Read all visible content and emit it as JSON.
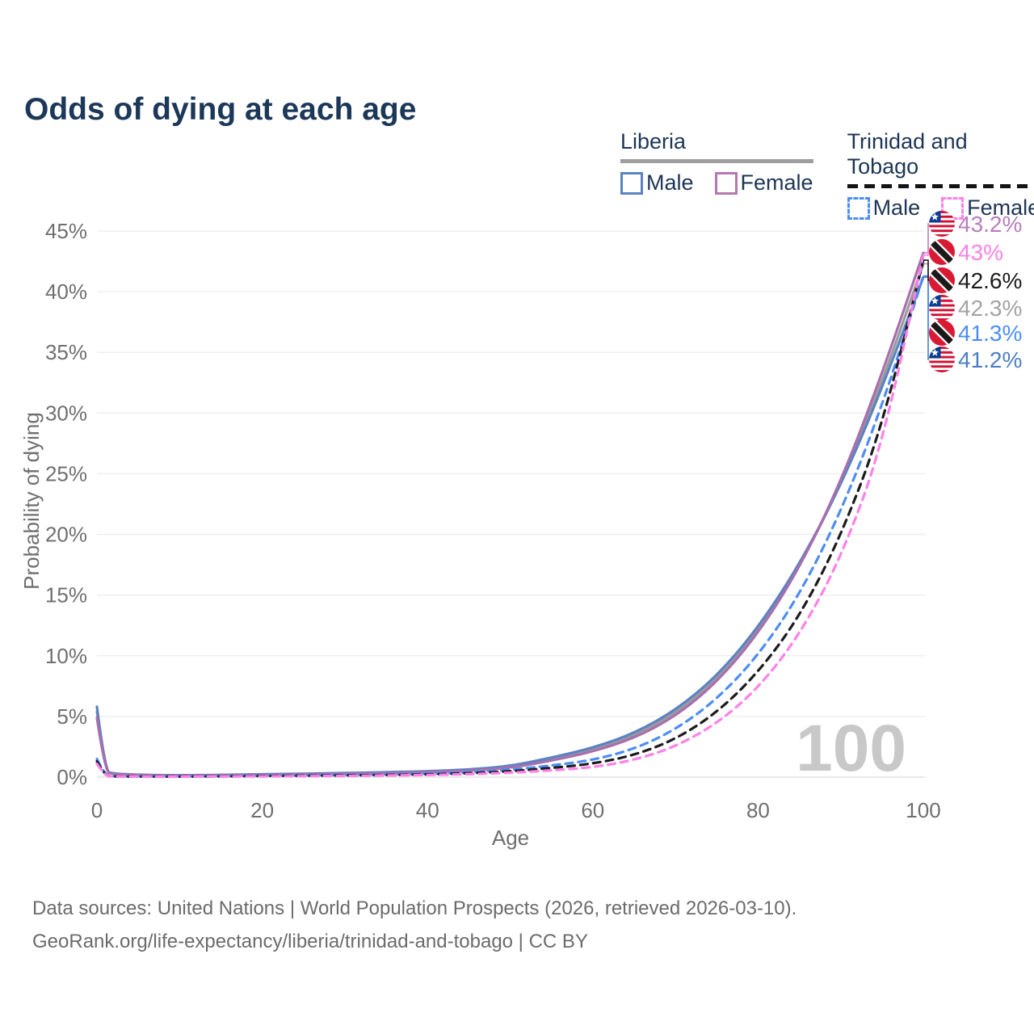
{
  "title": "Odds of dying at each age",
  "watermark_age": "100",
  "legend": {
    "groups": [
      {
        "name": "Liberia",
        "line_style": "solid",
        "underline_color": "#9e9e9e",
        "items": [
          {
            "label": "Male",
            "color": "#5b82c2"
          },
          {
            "label": "Female",
            "color": "#b279b2"
          }
        ]
      },
      {
        "name": "Trinidad and Tobago",
        "line_style": "dashed",
        "underline_color": "#141414",
        "items": [
          {
            "label": "Male",
            "color": "#4d8df5"
          },
          {
            "label": "Female",
            "color": "#ff80e8"
          }
        ]
      }
    ]
  },
  "footer": {
    "line1": "Data sources: United Nations | World Population Prospects (2026, retrieved 2026-03-10).",
    "line2": "GeoRank.org/life-expectancy/liberia/trinidad-and-tobago | CC BY"
  },
  "chart_data": {
    "type": "line",
    "title": "Odds of dying at each age",
    "xlabel": "Age",
    "ylabel": "Probability of dying",
    "xlim": [
      0,
      100
    ],
    "ylim": [
      0,
      45
    ],
    "x_ticks": [
      0,
      20,
      40,
      60,
      80,
      100
    ],
    "y_ticks": [
      0,
      5,
      10,
      15,
      20,
      25,
      30,
      35,
      40,
      45
    ],
    "y_tick_suffix": "%",
    "grid": true,
    "legend_position": "top-right",
    "x": [
      0,
      1,
      2,
      3,
      5,
      8,
      10,
      15,
      20,
      25,
      30,
      35,
      40,
      45,
      50,
      55,
      60,
      65,
      70,
      75,
      80,
      85,
      90,
      95,
      100
    ],
    "series": [
      {
        "name": "Liberia Both sexes",
        "country": "Liberia",
        "sex": "both",
        "color": "#9b9b9b",
        "dash": "solid",
        "flag": "liberia",
        "end_label": "42.3%",
        "label_color": "#a3a3a3",
        "label_slot": 141,
        "values": [
          5.4,
          0.43,
          0.28,
          0.23,
          0.18,
          0.14,
          0.13,
          0.16,
          0.2,
          0.25,
          0.3,
          0.36,
          0.44,
          0.57,
          0.82,
          1.45,
          2.25,
          3.4,
          5.25,
          8.0,
          12.0,
          17.3,
          24.1,
          32.5,
          42.3
        ]
      },
      {
        "name": "Liberia Male",
        "country": "Liberia",
        "sex": "male",
        "color": "#5b82c2",
        "dash": "solid",
        "flag": "liberia",
        "end_label": "41.2%",
        "label_color": "#4d7ec4",
        "label_slot": 205,
        "values": [
          5.8,
          0.45,
          0.3,
          0.25,
          0.2,
          0.16,
          0.15,
          0.18,
          0.23,
          0.28,
          0.33,
          0.4,
          0.48,
          0.62,
          0.9,
          1.6,
          2.4,
          3.6,
          5.5,
          8.3,
          12.3,
          17.5,
          24.0,
          32.0,
          41.2
        ]
      },
      {
        "name": "Liberia Female",
        "country": "Liberia",
        "sex": "female",
        "color": "#a86fae",
        "dash": "solid",
        "flag": "liberia",
        "end_label": "43.2%",
        "label_color": "#b67fbd",
        "label_slot": 37,
        "values": [
          4.9,
          0.4,
          0.26,
          0.21,
          0.17,
          0.13,
          0.12,
          0.14,
          0.18,
          0.22,
          0.27,
          0.33,
          0.4,
          0.52,
          0.75,
          1.35,
          2.1,
          3.2,
          5.0,
          7.8,
          11.8,
          17.2,
          24.3,
          33.2,
          43.2
        ]
      },
      {
        "name": "Trinidad and Tobago Male",
        "country": "Trinidad and Tobago",
        "sex": "male",
        "color": "#4d8df5",
        "dash": "dashed",
        "flag": "trinidad",
        "end_label": "41.3%",
        "label_color": "#4d8df5",
        "label_slot": 172,
        "values": [
          1.5,
          0.1,
          0.07,
          0.06,
          0.05,
          0.05,
          0.05,
          0.08,
          0.12,
          0.15,
          0.18,
          0.22,
          0.28,
          0.4,
          0.6,
          0.95,
          1.4,
          2.3,
          3.9,
          6.4,
          10.0,
          15.0,
          21.8,
          30.5,
          41.3
        ]
      },
      {
        "name": "Trinidad and Tobago Both sexes",
        "country": "Trinidad and Tobago",
        "sex": "both",
        "color": "#1c1c1c",
        "dash": "dashed",
        "flag": "trinidad",
        "end_label": "42.6%",
        "label_color": "#1c1c1c",
        "label_slot": 107,
        "values": [
          1.3,
          0.09,
          0.06,
          0.05,
          0.045,
          0.04,
          0.04,
          0.06,
          0.09,
          0.11,
          0.14,
          0.17,
          0.22,
          0.31,
          0.47,
          0.75,
          1.1,
          1.8,
          3.1,
          5.3,
          8.6,
          13.2,
          19.8,
          28.8,
          42.6
        ]
      },
      {
        "name": "Trinidad and Tobago Female",
        "country": "Trinidad and Tobago",
        "sex": "female",
        "color": "#ff80e8",
        "dash": "dashed",
        "flag": "trinidad",
        "end_label": "43%",
        "label_color": "#ff80e8",
        "label_slot": 72,
        "values": [
          1.1,
          0.08,
          0.05,
          0.045,
          0.04,
          0.035,
          0.035,
          0.05,
          0.06,
          0.08,
          0.1,
          0.13,
          0.17,
          0.24,
          0.36,
          0.55,
          0.8,
          1.4,
          2.5,
          4.4,
          7.3,
          11.7,
          18.0,
          27.2,
          43.0
        ]
      }
    ],
    "colors": {
      "grid": "#ececec",
      "grid_zero": "#dcdcdc",
      "axis_text": "#6f6f6f",
      "watermark": "#c8c8c8",
      "title": "#1c3859"
    }
  }
}
